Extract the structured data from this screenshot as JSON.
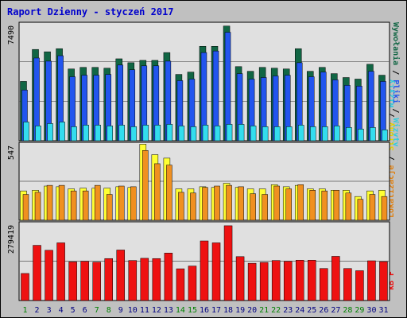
{
  "title": "Raport Dzienny -  styczeń 2017",
  "colors": {
    "background": "#c0c0c0",
    "plot_bg": "#e0e0e0",
    "title": "#0000cc",
    "weekday_label": "#000080",
    "weekend_label": "#008000",
    "visits_front": "#2255ee",
    "visits_back": "#116644",
    "files": "#33ddee",
    "hits": "#f09020",
    "sites": "#ffff33",
    "kbf": "#ee1111"
  },
  "chart_data": [
    {
      "type": "bar",
      "panel": "top",
      "ymax_label": "7490",
      "legend": [
        "Wywołania",
        "Pliki",
        "Wizyty"
      ],
      "ymax": 7490,
      "categories": [
        "1",
        "2",
        "3",
        "4",
        "5",
        "6",
        "7",
        "8",
        "9",
        "10",
        "11",
        "12",
        "13",
        "14",
        "15",
        "16",
        "17",
        "18",
        "19",
        "20",
        "21",
        "22",
        "23",
        "24",
        "25",
        "26",
        "27",
        "28",
        "29",
        "30",
        "31"
      ],
      "weekend": [
        "1",
        "7",
        "8",
        "14",
        "15",
        "21",
        "22",
        "28",
        "29"
      ],
      "series": [
        {
          "name": "Wywołania",
          "values": [
            3800,
            5850,
            5700,
            5900,
            4600,
            4700,
            4700,
            4650,
            5250,
            5000,
            5150,
            5150,
            5650,
            4250,
            4400,
            6050,
            6050,
            7350,
            4750,
            4450,
            4700,
            4650,
            4600,
            5900,
            4450,
            4700,
            4300,
            4050,
            3950,
            4900,
            4200
          ]
        },
        {
          "name": "Pliki",
          "values": [
            3250,
            5300,
            5100,
            5450,
            4100,
            4200,
            4200,
            4250,
            4850,
            4550,
            4800,
            4800,
            5100,
            3850,
            3950,
            5650,
            5750,
            6950,
            4300,
            3950,
            4050,
            4150,
            4200,
            5000,
            4100,
            4400,
            3900,
            3550,
            3500,
            4450,
            3800
          ]
        },
        {
          "name": "Wizyty",
          "values": [
            1200,
            950,
            1100,
            1200,
            900,
            1000,
            1000,
            950,
            1000,
            900,
            1000,
            1000,
            1050,
            950,
            900,
            1000,
            950,
            1050,
            1050,
            950,
            900,
            900,
            900,
            1000,
            900,
            900,
            950,
            850,
            750,
            850,
            700
          ]
        }
      ]
    },
    {
      "type": "bar",
      "panel": "middle",
      "ymax_label": "547",
      "legend": [
        "Wizyty",
        "Strony",
        "Lokalizacje"
      ],
      "ymax": 547,
      "series": [
        {
          "name": "Wizyty",
          "values": [
            210,
            215,
            245,
            240,
            225,
            230,
            230,
            230,
            240,
            235,
            545,
            470,
            445,
            225,
            225,
            240,
            235,
            265,
            235,
            225,
            225,
            255,
            240,
            250,
            225,
            225,
            215,
            215,
            170,
            210,
            215
          ]
        },
        {
          "name": "Strony",
          "values": [
            185,
            200,
            250,
            250,
            210,
            210,
            250,
            185,
            245,
            240,
            500,
            405,
            395,
            200,
            195,
            235,
            245,
            250,
            240,
            190,
            185,
            245,
            225,
            255,
            215,
            210,
            215,
            195,
            150,
            185,
            170
          ]
        }
      ]
    },
    {
      "type": "bar",
      "panel": "bottom",
      "ymax_label": "279419",
      "legend": [
        "kB F"
      ],
      "ymax": 279419,
      "series": [
        {
          "name": "kB F",
          "values": [
            98000,
            200000,
            182000,
            209000,
            140000,
            142000,
            139000,
            152000,
            183000,
            145000,
            153000,
            152000,
            172000,
            115000,
            125000,
            216000,
            209000,
            271000,
            159000,
            135000,
            138000,
            145000,
            142000,
            146000,
            146000,
            116000,
            160000,
            116000,
            108000,
            144000,
            141000
          ]
        }
      ]
    }
  ]
}
